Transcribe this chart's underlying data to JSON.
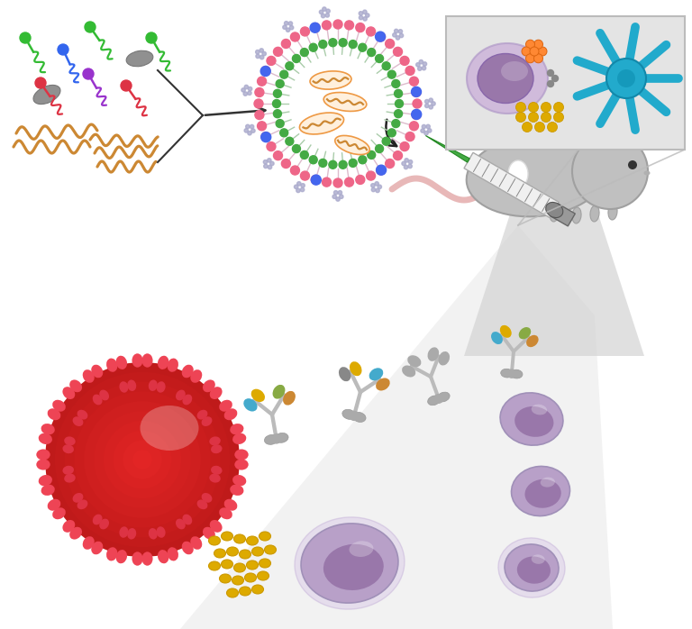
{
  "bg_color": "#ffffff",
  "fig_width": 7.68,
  "fig_height": 6.98,
  "dpi": 100,
  "wavy_rna_color": "#cc8833",
  "virus_color": "#cc3333",
  "virus_spike_color": "#ee4455",
  "gold_color": "#ddaa00",
  "bcell_outer": "#c8b8d0",
  "bcell_inner": "#a888b0",
  "bcell_nucleus": "#9977a8",
  "mouse_color": "#c0c0c0",
  "beam_color": "#e0e0e0",
  "inset_bg": "#e4e4e4",
  "ab_gray": "#aaaaaa",
  "ab_yellow": "#ddaa00",
  "ab_cyan": "#44aacc",
  "ab_orange": "#cc8833",
  "ab_green": "#88aa44"
}
